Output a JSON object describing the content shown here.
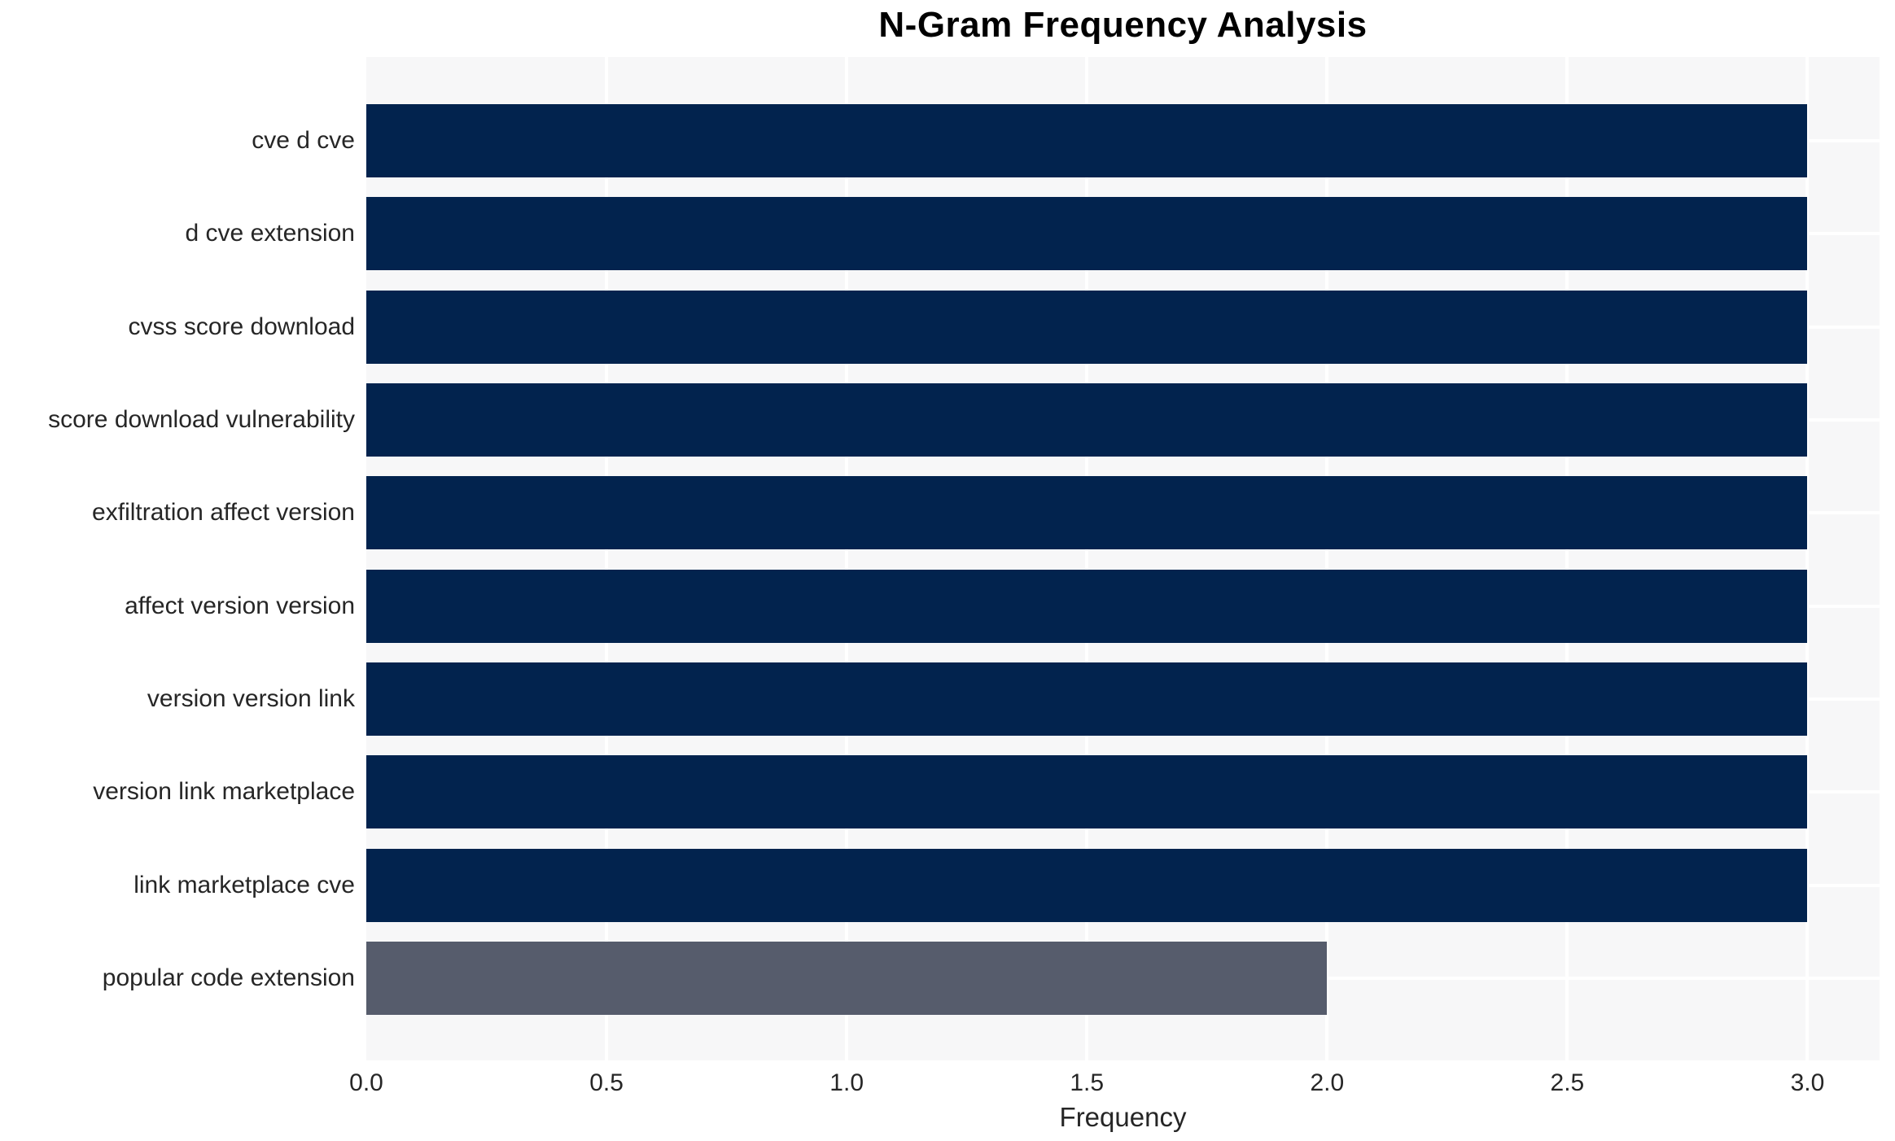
{
  "chart_data": {
    "type": "bar",
    "orientation": "horizontal",
    "title": "N-Gram Frequency Analysis",
    "xlabel": "Frequency",
    "ylabel": "",
    "categories": [
      "cve d cve",
      "d cve extension",
      "cvss score download",
      "score download vulnerability",
      "exfiltration affect version",
      "affect version version",
      "version version link",
      "version link marketplace",
      "link marketplace cve",
      "popular code extension"
    ],
    "values": [
      3,
      3,
      3,
      3,
      3,
      3,
      3,
      3,
      3,
      2
    ],
    "bar_colors": [
      "#02234e",
      "#02234e",
      "#02234e",
      "#02234e",
      "#02234e",
      "#02234e",
      "#02234e",
      "#02234e",
      "#02234e",
      "#565c6c"
    ],
    "x_ticks": [
      0.0,
      0.5,
      1.0,
      1.5,
      2.0,
      2.5,
      3.0
    ],
    "x_tick_labels": [
      "0.0",
      "0.5",
      "1.0",
      "1.5",
      "2.0",
      "2.5",
      "3.0"
    ],
    "xlim": [
      0,
      3.15
    ],
    "grid": true,
    "legend": null,
    "colors": {
      "plot_background": "#f7f7f8",
      "figure_background": "#ffffff",
      "gridline": "#ffffff",
      "tick_text": "#262626",
      "title_text": "#000000"
    }
  }
}
